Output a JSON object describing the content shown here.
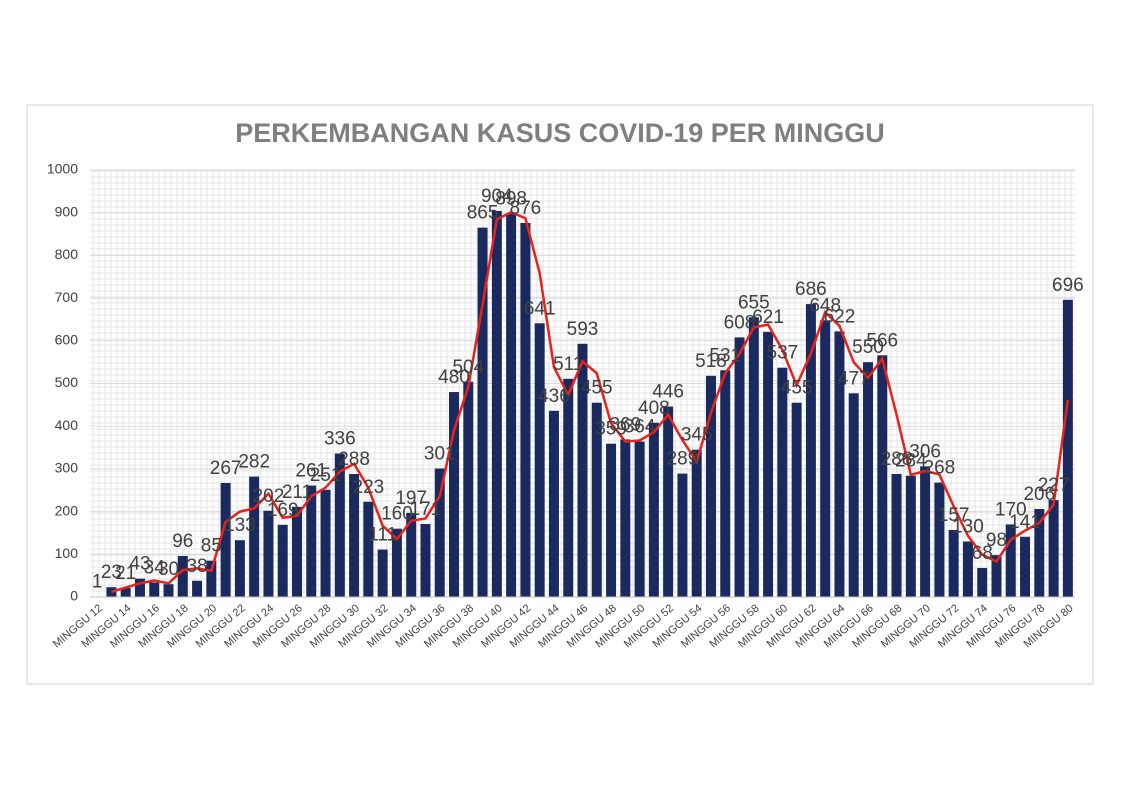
{
  "chart_data": {
    "type": "bar",
    "title": "PERKEMBANGAN KASUS COVID-19 PER MINGGU",
    "categories": [
      "MINGGU 12",
      null,
      "MINGGU 14",
      null,
      "MINGGU 16",
      null,
      "MINGGU 18",
      null,
      "MINGGU 20",
      null,
      "MINGGU 22",
      null,
      "MINGGU 24",
      null,
      "MINGGU 26",
      null,
      "MINGGU 28",
      null,
      "MINGGU 30",
      null,
      "MINGGU 32",
      null,
      "MINGGU 34",
      null,
      "MINGGU 36",
      null,
      "MINGGU 38",
      null,
      "MINGGU 40",
      null,
      "MINGGU 42",
      null,
      "MINGGU 44",
      null,
      "MINGGU 46",
      null,
      "MINGGU 48",
      null,
      "MINGGU 50",
      null,
      "MINGGU 52",
      null,
      "MINGGU 54",
      null,
      "MINGGU 56",
      null,
      "MINGGU 58",
      null,
      "MINGGU 60",
      null,
      "MINGGU 62",
      null,
      "MINGGU 64",
      null,
      "MINGGU 66",
      null,
      "MINGGU 68",
      null,
      "MINGGU 70",
      null,
      "MINGGU 72",
      null,
      "MINGGU 74",
      null,
      "MINGGU 76",
      null,
      "MINGGU 78",
      null,
      "MINGGU 80"
    ],
    "values": [
      1,
      23,
      21,
      43,
      34,
      30,
      96,
      38,
      85,
      267,
      133,
      282,
      202,
      169,
      211,
      261,
      251,
      336,
      288,
      223,
      111,
      160,
      197,
      171,
      301,
      480,
      504,
      865,
      904,
      898,
      876,
      641,
      436,
      511,
      593,
      455,
      359,
      369,
      364,
      408,
      446,
      289,
      345,
      518,
      531,
      608,
      655,
      621,
      537,
      455,
      686,
      648,
      622,
      477,
      550,
      566,
      288,
      284,
      306,
      268,
      157,
      130,
      68,
      98,
      170,
      141,
      206,
      227,
      696
    ],
    "color": "#1b2a5e",
    "trendline": {
      "type": "moving_average",
      "period": 2,
      "color": "#e8221b"
    },
    "ylim": [
      0,
      1000
    ],
    "yticks": [
      0,
      100,
      200,
      300,
      400,
      500,
      600,
      700,
      800,
      900,
      1000
    ],
    "grid": true
  }
}
